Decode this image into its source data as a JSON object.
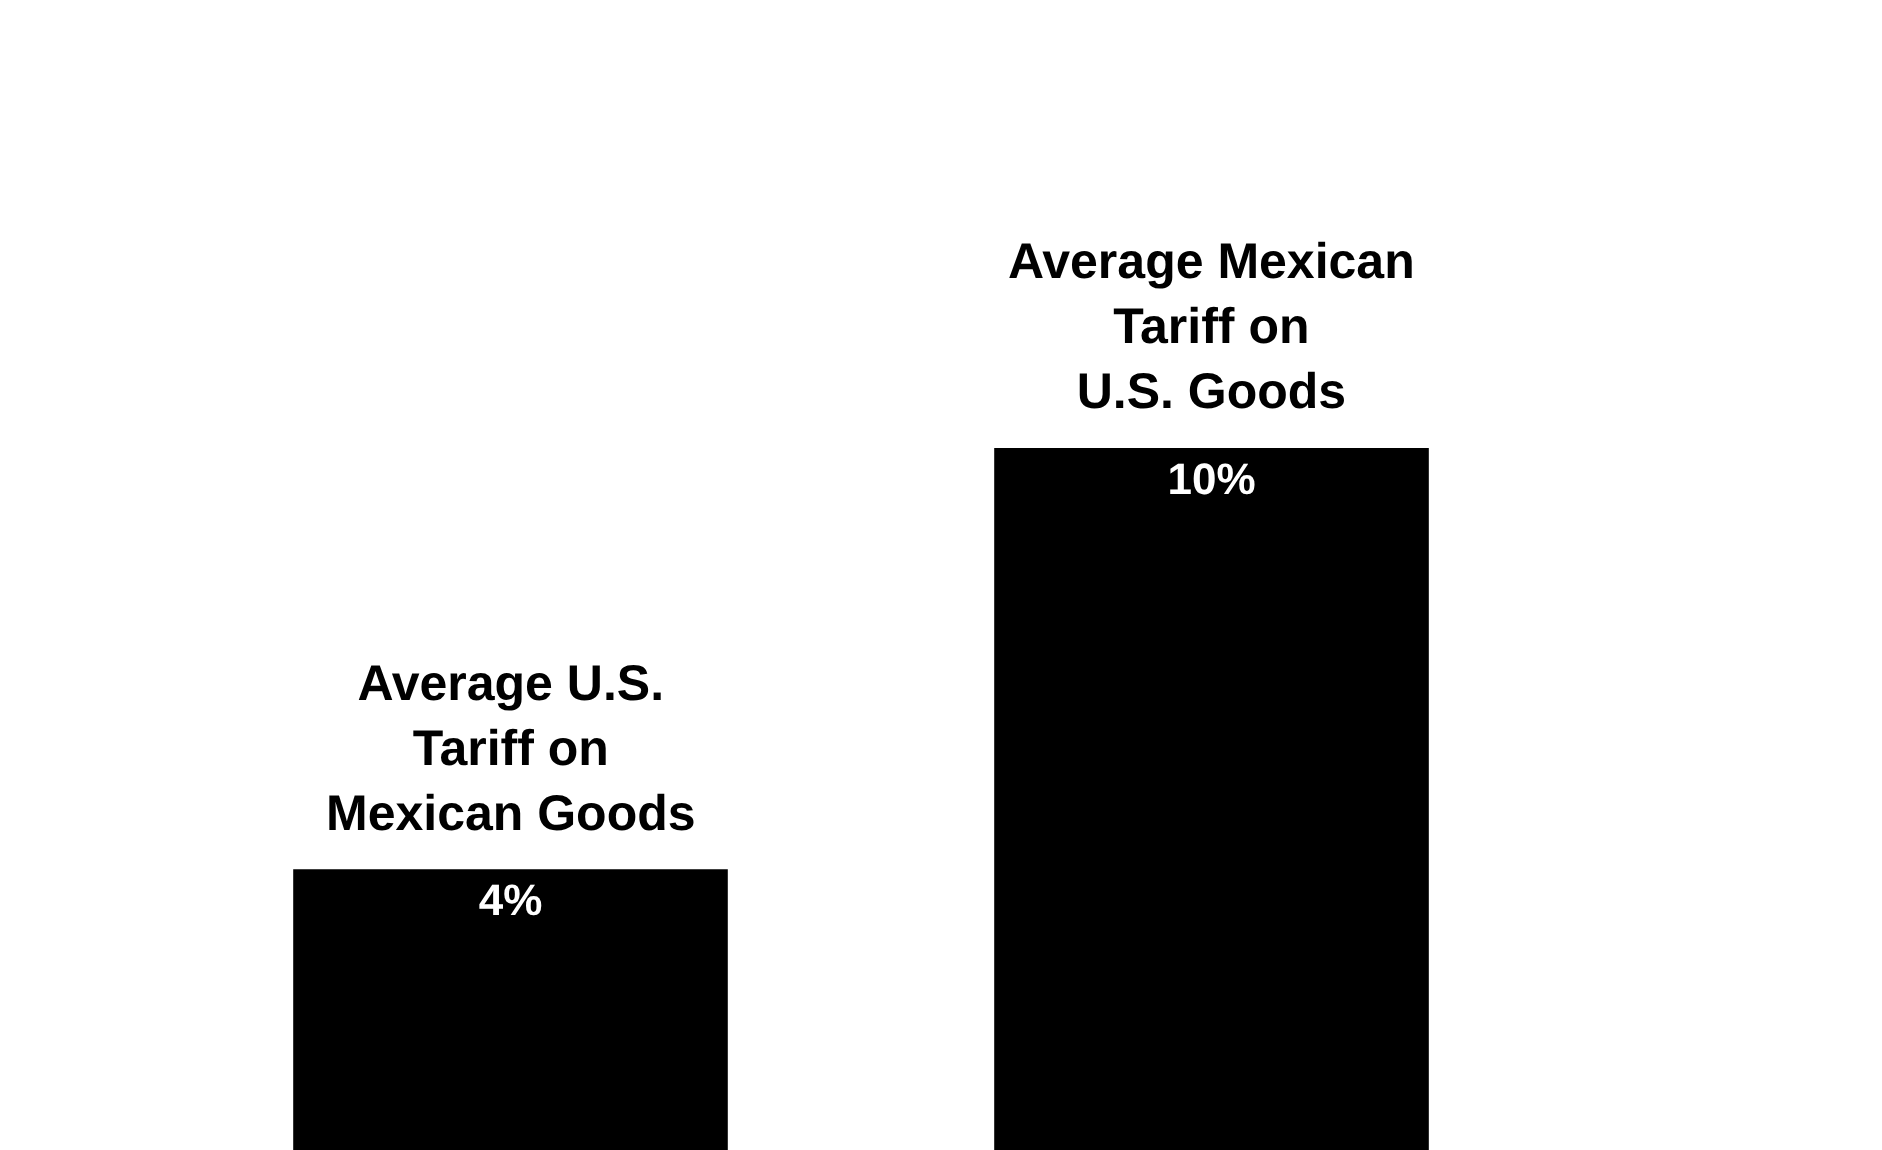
{
  "chart_data": {
    "type": "bar",
    "categories": [
      "Average U.S.\nTariff on\nMexican Goods",
      "Average Mexican\nTariff on\nU.S. Goods"
    ],
    "values": [
      4,
      10
    ],
    "color": "#000000",
    "value_labels": [
      "4%",
      "10%"
    ]
  }
}
